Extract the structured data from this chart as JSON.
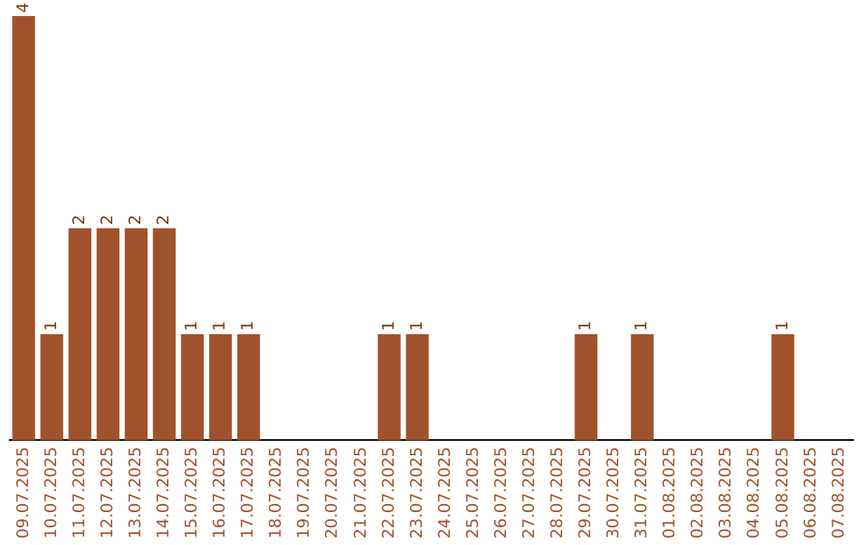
{
  "chart_data": {
    "type": "bar",
    "categories": [
      "09.07.2025",
      "10.07.2025",
      "11.07.2025",
      "12.07.2025",
      "13.07.2025",
      "14.07.2025",
      "15.07.2025",
      "16.07.2025",
      "17.07.2025",
      "18.07.2025",
      "19.07.2025",
      "20.07.2025",
      "21.07.2025",
      "22.07.2025",
      "23.07.2025",
      "24.07.2025",
      "25.07.2025",
      "26.07.2025",
      "27.07.2025",
      "28.07.2025",
      "29.07.2025",
      "30.07.2025",
      "31.07.2025",
      "01.08.2025",
      "02.08.2025",
      "03.08.2025",
      "04.08.2025",
      "05.08.2025",
      "06.08.2025",
      "07.08.2025"
    ],
    "values": [
      4,
      1,
      2,
      2,
      2,
      2,
      1,
      1,
      1,
      0,
      0,
      0,
      0,
      1,
      1,
      0,
      0,
      0,
      0,
      0,
      1,
      0,
      1,
      0,
      0,
      0,
      0,
      1,
      0,
      0
    ],
    "value_labels": [
      "4",
      "1",
      "2",
      "2",
      "2",
      "2",
      "1",
      "1",
      "1",
      null,
      null,
      null,
      null,
      "1",
      "1",
      null,
      null,
      null,
      null,
      null,
      "1",
      null,
      "1",
      null,
      null,
      null,
      null,
      "1",
      null,
      null
    ],
    "color": "#a0522d",
    "grid": false,
    "legend": false,
    "tick_labels": "x"
  }
}
